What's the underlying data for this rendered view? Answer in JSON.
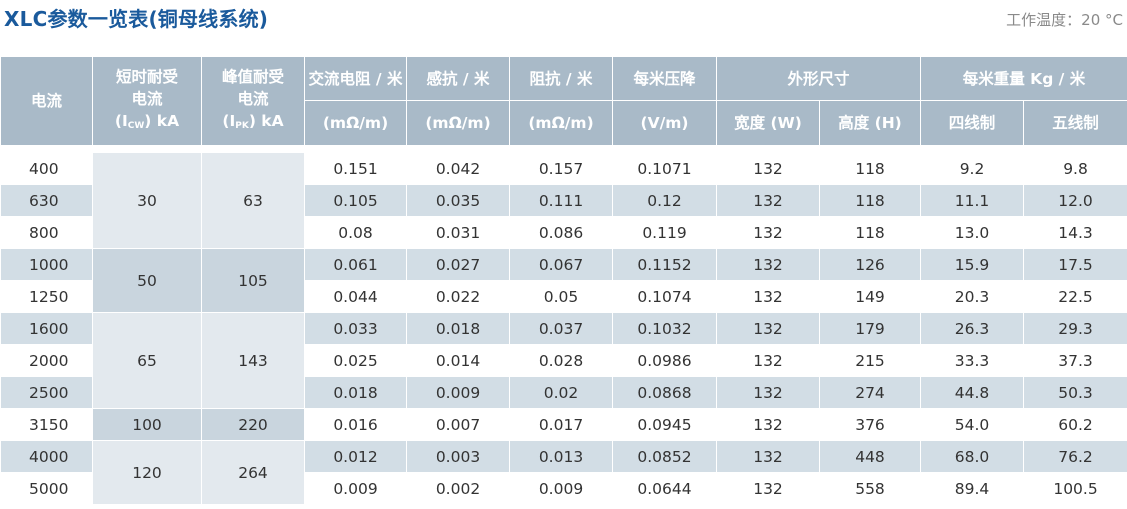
{
  "title": "XLC参数一览表(铜母线系统)",
  "temperature": "工作温度：20 °C",
  "headers": {
    "current": "电流",
    "icw_1": "短时耐受",
    "icw_2": "电流",
    "icw_3a": "(I",
    "icw_3sub": "CW",
    "icw_3b": ") kA",
    "ipk_1": "峰值耐受",
    "ipk_2": "电流",
    "ipk_3a": "(I",
    "ipk_3sub": "PK",
    "ipk_3b": ") kA",
    "ac_res": "交流电阻 / 米",
    "ac_res_unit": "(mΩ/m)",
    "react": "感抗 / 米",
    "react_unit": "(mΩ/m)",
    "imp": "阻抗 / 米",
    "imp_unit": "(mΩ/m)",
    "vdrop": "每米压降",
    "vdrop_unit": "(V/m)",
    "dims": "外形尺寸",
    "width": "宽度 (W)",
    "height": "高度 (H)",
    "weight": "每米重量 Kg / 米",
    "four": "四线制",
    "five": "五线制"
  },
  "groups": [
    {
      "icw": "30",
      "ipk": "63"
    },
    {
      "icw": "50",
      "ipk": "105"
    },
    {
      "icw": "65",
      "ipk": "143"
    },
    {
      "icw": "100",
      "ipk": "220"
    },
    {
      "icw": "120",
      "ipk": "264"
    }
  ],
  "rows": [
    {
      "current": "400",
      "ac": "0.151",
      "x": "0.042",
      "z": "0.157",
      "v": "0.1071",
      "w": "132",
      "h": "118",
      "k4": "9.2",
      "k5": "9.8"
    },
    {
      "current": "630",
      "ac": "0.105",
      "x": "0.035",
      "z": "0.111",
      "v": "0.12",
      "w": "132",
      "h": "118",
      "k4": "11.1",
      "k5": "12.0"
    },
    {
      "current": "800",
      "ac": "0.08",
      "x": "0.031",
      "z": "0.086",
      "v": "0.119",
      "w": "132",
      "h": "118",
      "k4": "13.0",
      "k5": "14.3"
    },
    {
      "current": "1000",
      "ac": "0.061",
      "x": "0.027",
      "z": "0.067",
      "v": "0.1152",
      "w": "132",
      "h": "126",
      "k4": "15.9",
      "k5": "17.5"
    },
    {
      "current": "1250",
      "ac": "0.044",
      "x": "0.022",
      "z": "0.05",
      "v": "0.1074",
      "w": "132",
      "h": "149",
      "k4": "20.3",
      "k5": "22.5"
    },
    {
      "current": "1600",
      "ac": "0.033",
      "x": "0.018",
      "z": "0.037",
      "v": "0.1032",
      "w": "132",
      "h": "179",
      "k4": "26.3",
      "k5": "29.3"
    },
    {
      "current": "2000",
      "ac": "0.025",
      "x": "0.014",
      "z": "0.028",
      "v": "0.0986",
      "w": "132",
      "h": "215",
      "k4": "33.3",
      "k5": "37.3"
    },
    {
      "current": "2500",
      "ac": "0.018",
      "x": "0.009",
      "z": "0.02",
      "v": "0.0868",
      "w": "132",
      "h": "274",
      "k4": "44.8",
      "k5": "50.3"
    },
    {
      "current": "3150",
      "ac": "0.016",
      "x": "0.007",
      "z": "0.017",
      "v": "0.0945",
      "w": "132",
      "h": "376",
      "k4": "54.0",
      "k5": "60.2"
    },
    {
      "current": "4000",
      "ac": "0.012",
      "x": "0.003",
      "z": "0.013",
      "v": "0.0852",
      "w": "132",
      "h": "448",
      "k4": "68.0",
      "k5": "76.2"
    },
    {
      "current": "5000",
      "ac": "0.009",
      "x": "0.002",
      "z": "0.009",
      "v": "0.0644",
      "w": "132",
      "h": "558",
      "k4": "89.4",
      "k5": "100.5"
    }
  ]
}
